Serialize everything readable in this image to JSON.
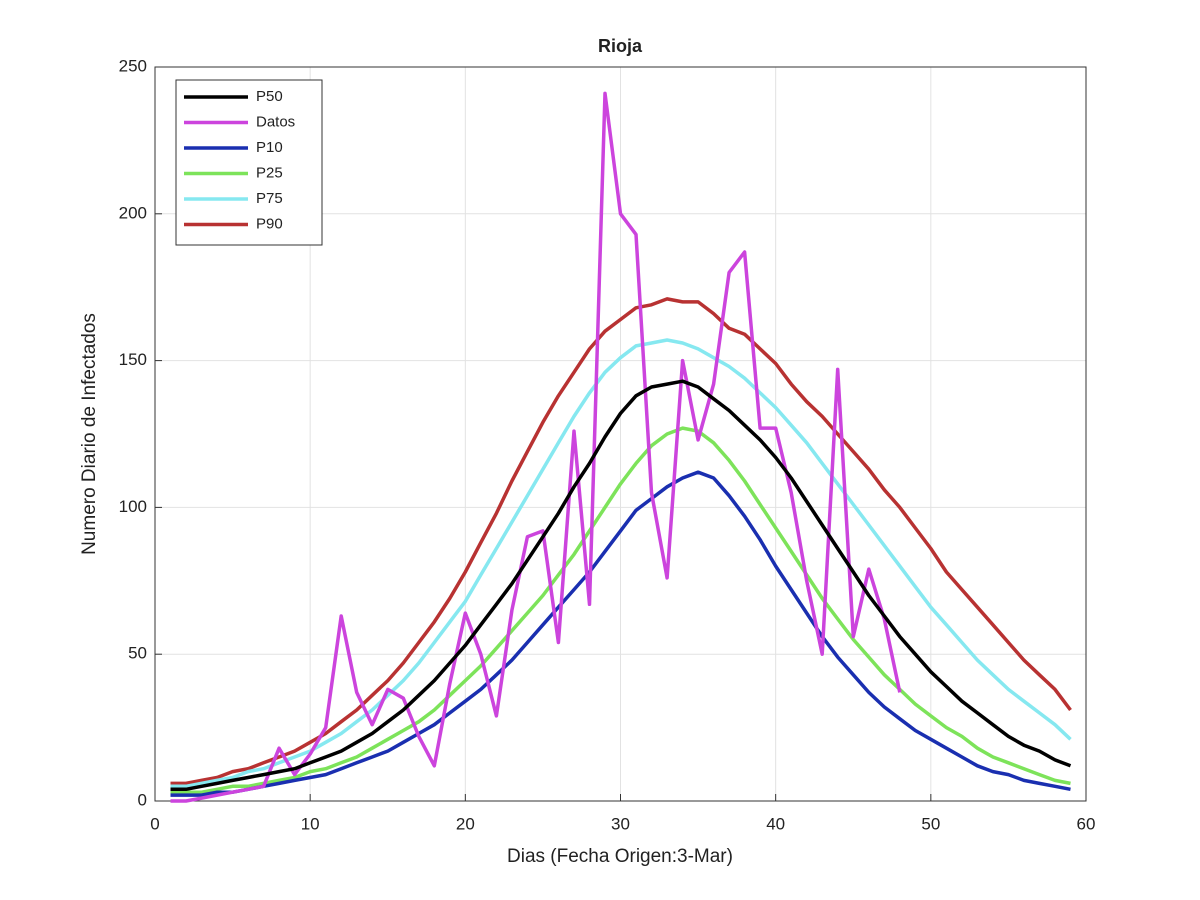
{
  "chart_data": {
    "type": "line",
    "title": "Rioja",
    "xlabel": "Dias (Fecha Origen:3-Mar)",
    "ylabel": "Numero Diario de Infectados",
    "x": [
      1,
      2,
      3,
      4,
      5,
      6,
      7,
      8,
      9,
      10,
      11,
      12,
      13,
      14,
      15,
      16,
      17,
      18,
      19,
      20,
      21,
      22,
      23,
      24,
      25,
      26,
      27,
      28,
      29,
      30,
      31,
      32,
      33,
      34,
      35,
      36,
      37,
      38,
      39,
      40,
      41,
      42,
      43,
      44,
      45,
      46,
      47,
      48,
      49,
      50,
      51,
      52,
      53,
      54,
      55,
      56,
      57,
      58,
      59
    ],
    "xlim": [
      0,
      60
    ],
    "xticks": [
      0,
      10,
      20,
      30,
      40,
      50,
      60
    ],
    "ylim": [
      0,
      250
    ],
    "yticks": [
      0,
      50,
      100,
      150,
      200,
      250
    ],
    "grid": true,
    "legend": "upper left",
    "series": [
      {
        "name": "P50",
        "color": "#000000",
        "values": [
          4,
          4,
          5,
          6,
          7,
          8,
          9,
          10,
          11,
          13,
          15,
          17,
          20,
          23,
          27,
          31,
          36,
          41,
          47,
          53,
          60,
          67,
          74,
          82,
          90,
          98,
          107,
          115,
          124,
          132,
          138,
          141,
          142,
          143,
          141,
          137,
          133,
          128,
          123,
          117,
          110,
          102,
          94,
          86,
          78,
          70,
          63,
          56,
          50,
          44,
          39,
          34,
          30,
          26,
          22,
          19,
          17,
          14,
          12
        ]
      },
      {
        "name": "Datos",
        "color": "#cc44dd",
        "values": [
          0,
          0,
          1,
          2,
          3,
          4,
          5,
          18,
          9,
          16,
          25,
          63,
          37,
          26,
          38,
          35,
          22,
          12,
          40,
          64,
          50,
          29,
          65,
          90,
          92,
          54,
          126,
          67,
          241,
          200,
          193,
          105,
          76,
          150,
          123,
          142,
          180,
          187,
          127,
          127,
          105,
          75,
          50,
          147,
          56,
          79,
          62,
          37,
          null,
          null,
          null,
          null,
          null,
          null,
          null,
          null,
          null,
          null,
          null
        ]
      },
      {
        "name": "P10",
        "color": "#1a2fb0",
        "values": [
          2,
          2,
          2,
          3,
          3,
          4,
          5,
          6,
          7,
          8,
          9,
          11,
          13,
          15,
          17,
          20,
          23,
          26,
          30,
          34,
          38,
          43,
          48,
          54,
          60,
          66,
          72,
          78,
          85,
          92,
          99,
          103,
          107,
          110,
          112,
          110,
          104,
          97,
          89,
          80,
          72,
          64,
          56,
          49,
          43,
          37,
          32,
          28,
          24,
          21,
          18,
          15,
          12,
          10,
          9,
          7,
          6,
          5,
          4
        ]
      },
      {
        "name": "P25",
        "color": "#7de35a",
        "values": [
          3,
          3,
          3,
          4,
          5,
          5,
          6,
          7,
          8,
          10,
          11,
          13,
          15,
          18,
          21,
          24,
          27,
          31,
          36,
          41,
          46,
          52,
          58,
          64,
          70,
          77,
          84,
          92,
          100,
          108,
          115,
          121,
          125,
          127,
          126,
          122,
          116,
          109,
          101,
          93,
          85,
          77,
          69,
          62,
          55,
          49,
          43,
          38,
          33,
          29,
          25,
          22,
          18,
          15,
          13,
          11,
          9,
          7,
          6
        ]
      },
      {
        "name": "P75",
        "color": "#86e8f0",
        "values": [
          5,
          5,
          6,
          7,
          8,
          10,
          11,
          13,
          15,
          17,
          20,
          23,
          27,
          31,
          36,
          41,
          47,
          54,
          61,
          68,
          77,
          86,
          95,
          104,
          113,
          122,
          131,
          139,
          146,
          151,
          155,
          156,
          157,
          156,
          154,
          151,
          148,
          144,
          139,
          134,
          128,
          122,
          115,
          108,
          101,
          94,
          87,
          80,
          73,
          66,
          60,
          54,
          48,
          43,
          38,
          34,
          30,
          26,
          21
        ]
      },
      {
        "name": "P90",
        "color": "#b83232",
        "values": [
          6,
          6,
          7,
          8,
          10,
          11,
          13,
          15,
          17,
          20,
          23,
          27,
          31,
          36,
          41,
          47,
          54,
          61,
          69,
          78,
          88,
          98,
          109,
          119,
          129,
          138,
          146,
          154,
          160,
          164,
          168,
          169,
          171,
          170,
          170,
          166,
          161,
          159,
          154,
          149,
          142,
          136,
          131,
          125,
          119,
          113,
          106,
          100,
          93,
          86,
          78,
          72,
          66,
          60,
          54,
          48,
          43,
          38,
          31
        ]
      }
    ]
  }
}
